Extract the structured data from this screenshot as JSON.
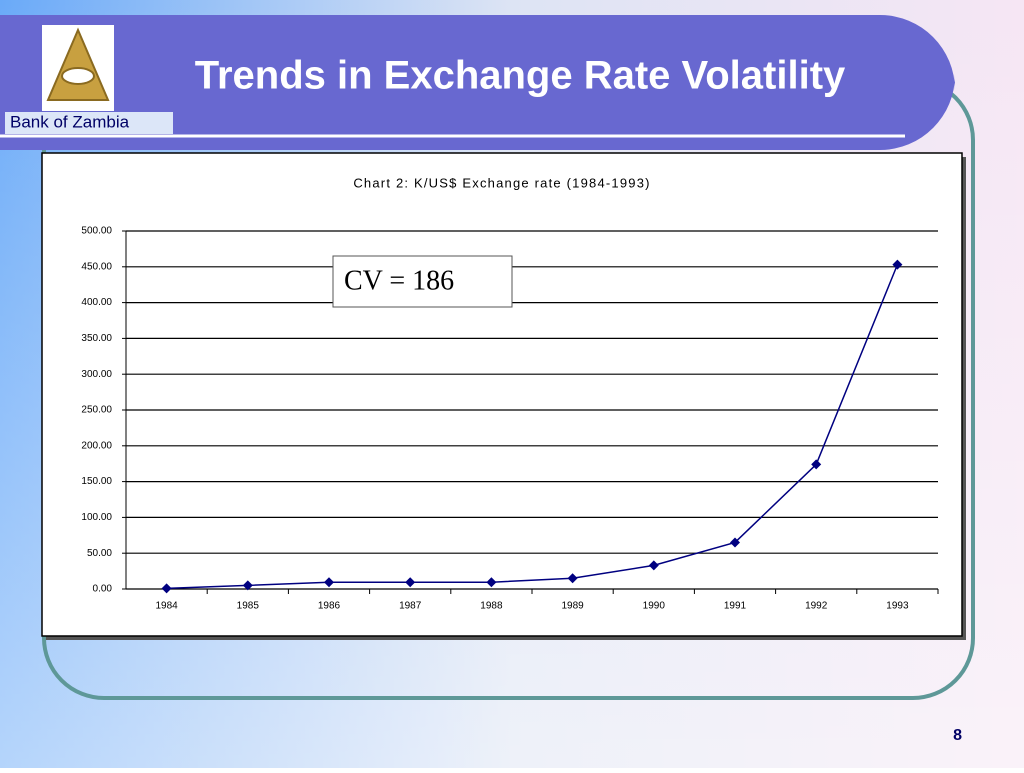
{
  "slide": {
    "title": "Trends in Exchange Rate Volatility",
    "organization": "Bank of Zambia",
    "page_number": "8"
  },
  "chart_data": {
    "type": "line",
    "title": "Chart 2: K/US$ Exchange rate (1984-1993)",
    "categories": [
      "1984",
      "1985",
      "1986",
      "1987",
      "1988",
      "1989",
      "1990",
      "1991",
      "1992",
      "1993"
    ],
    "series": [
      {
        "name": "K/US$",
        "color": "#000080",
        "values": [
          0.8,
          5,
          9.5,
          9.5,
          9.5,
          15,
          33,
          65,
          174,
          453
        ]
      }
    ],
    "ylim": [
      0,
      500
    ],
    "yticks": [
      {
        "value": 0,
        "label": "0.00"
      },
      {
        "value": 50,
        "label": "50.00"
      },
      {
        "value": 100,
        "label": "100.00"
      },
      {
        "value": 150,
        "label": "150.00"
      },
      {
        "value": 200,
        "label": "200.00"
      },
      {
        "value": 250,
        "label": "250.00"
      },
      {
        "value": 300,
        "label": "300.00"
      },
      {
        "value": 350,
        "label": "350.00"
      },
      {
        "value": 400,
        "label": "400.00"
      },
      {
        "value": 450,
        "label": "450.00"
      },
      {
        "value": 500,
        "label": "500.00"
      }
    ],
    "grid": true,
    "annotation": "CV = 186"
  }
}
